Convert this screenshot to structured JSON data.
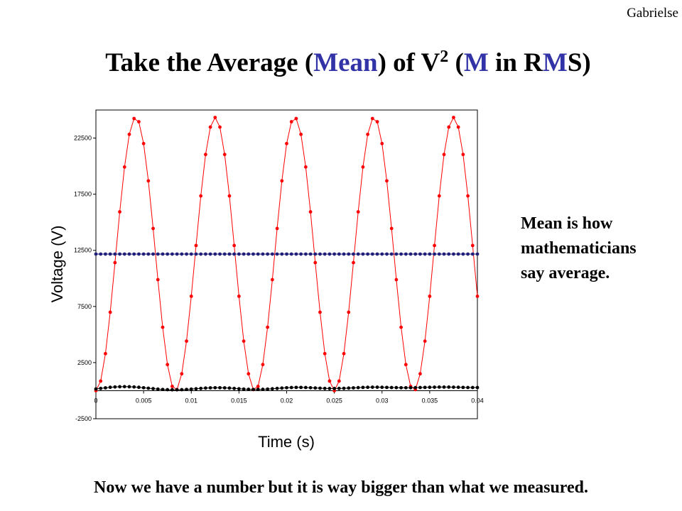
{
  "slide": {
    "author": "Gabrielse",
    "title_parts": [
      {
        "text": "Take the Average (",
        "color": "#000000"
      },
      {
        "text": "Mean",
        "color": "#3333a8"
      },
      {
        "text": ") of V",
        "color": "#000000"
      },
      {
        "text": "2",
        "color": "#000000",
        "sup": true
      },
      {
        "text": " (",
        "color": "#000000"
      },
      {
        "text": "M",
        "color": "#3333a8"
      },
      {
        "text": " in R",
        "color": "#000000"
      },
      {
        "text": "M",
        "color": "#3333a8"
      },
      {
        "text": "S)",
        "color": "#000000"
      }
    ],
    "note_lines": [
      "Mean is how",
      "mathematicians",
      "say average."
    ],
    "footer": "Now we have a number but it is way bigger than what we measured."
  },
  "chart_data": {
    "type": "line",
    "x_label": "Time (s)",
    "y_label": "Voltage (V)",
    "xlim": [
      0,
      0.04
    ],
    "xticks": [
      0,
      0.005,
      0.01,
      0.015,
      0.02,
      0.025,
      0.03,
      0.035,
      0.04
    ],
    "ylim": [
      -2500,
      25000
    ],
    "yticks": [
      -2500,
      2500,
      7500,
      12500,
      17500,
      22500
    ],
    "grid": false,
    "x": [
      0,
      0.0005,
      0.001,
      0.0015,
      0.002,
      0.0025,
      0.003,
      0.0035,
      0.004,
      0.0045,
      0.005,
      0.0055,
      0.006,
      0.0065,
      0.007,
      0.0075,
      0.008,
      0.0085,
      0.009,
      0.0095,
      0.01,
      0.0105,
      0.011,
      0.0115,
      0.012,
      0.0125,
      0.013,
      0.0135,
      0.014,
      0.0145,
      0.015,
      0.0155,
      0.016,
      0.0165,
      0.017,
      0.0175,
      0.018,
      0.0185,
      0.019,
      0.0195,
      0.02,
      0.0205,
      0.021,
      0.0215,
      0.022,
      0.0225,
      0.023,
      0.0235,
      0.024,
      0.0245,
      0.025,
      0.0255,
      0.026,
      0.0265,
      0.027,
      0.0275,
      0.028,
      0.0285,
      0.029,
      0.0295,
      0.03,
      0.0305,
      0.031,
      0.0315,
      0.032,
      0.0325,
      0.033,
      0.0335,
      0.034,
      0.0345,
      0.035,
      0.0355,
      0.036,
      0.0365,
      0.037,
      0.0375,
      0.038,
      0.0385,
      0.039,
      0.0395,
      0.04
    ],
    "series": [
      {
        "color": "#ff0000",
        "values": [
          0,
          854,
          3298,
          6987,
          11404,
          15928,
          19924,
          22832,
          24241,
          23954,
          22012,
          18688,
          14448,
          9888,
          5648,
          2324,
          382,
          96,
          1505,
          4412,
          8408,
          12932,
          17349,
          21038,
          23482,
          24336,
          23482,
          21038,
          17349,
          12932,
          8408,
          4412,
          1505,
          96,
          382,
          2324,
          5648,
          9888,
          14448,
          18688,
          22012,
          23954,
          24241,
          22832,
          19924,
          15928,
          11404,
          6987,
          3298,
          854,
          0,
          854,
          3298,
          6987,
          11404,
          15928,
          19924,
          22832,
          24241,
          23954,
          22012,
          18688,
          14448,
          9888,
          5648,
          2324,
          382,
          96,
          1505,
          4412,
          8408,
          12932,
          17349,
          21038,
          23482,
          24336,
          23482,
          21038,
          17349,
          12932,
          8408
        ]
      },
      {
        "color": "#1f1f7a",
        "values": [
          12168,
          12168,
          12168,
          12168,
          12168,
          12168,
          12168,
          12168,
          12168,
          12168,
          12168,
          12168,
          12168,
          12168,
          12168,
          12168,
          12168,
          12168,
          12168,
          12168,
          12168,
          12168,
          12168,
          12168,
          12168,
          12168,
          12168,
          12168,
          12168,
          12168,
          12168,
          12168,
          12168,
          12168,
          12168,
          12168,
          12168,
          12168,
          12168,
          12168,
          12168,
          12168,
          12168,
          12168,
          12168,
          12168,
          12168,
          12168,
          12168,
          12168,
          12168,
          12168,
          12168,
          12168,
          12168,
          12168,
          12168,
          12168,
          12168,
          12168,
          12168,
          12168,
          12168,
          12168,
          12168,
          12168,
          12168,
          12168,
          12168,
          12168,
          12168,
          12168,
          12168,
          12168,
          12168,
          12168,
          12168,
          12168,
          12168,
          12168,
          12168
        ]
      },
      {
        "color": "#000000",
        "values": [
          150,
          200,
          250,
          300,
          330,
          350,
          360,
          350,
          330,
          300,
          260,
          220,
          180,
          140,
          110,
          90,
          80,
          80,
          90,
          110,
          140,
          170,
          200,
          230,
          250,
          260,
          260,
          250,
          230,
          200,
          170,
          140,
          120,
          110,
          110,
          120,
          140,
          170,
          200,
          230,
          260,
          280,
          290,
          290,
          280,
          260,
          240,
          220,
          200,
          190,
          190,
          200,
          210,
          230,
          250,
          270,
          290,
          300,
          310,
          310,
          300,
          290,
          280,
          270,
          260,
          260,
          260,
          270,
          280,
          290,
          300,
          310,
          320,
          320,
          320,
          310,
          300,
          290,
          280,
          280,
          280
        ]
      }
    ]
  }
}
